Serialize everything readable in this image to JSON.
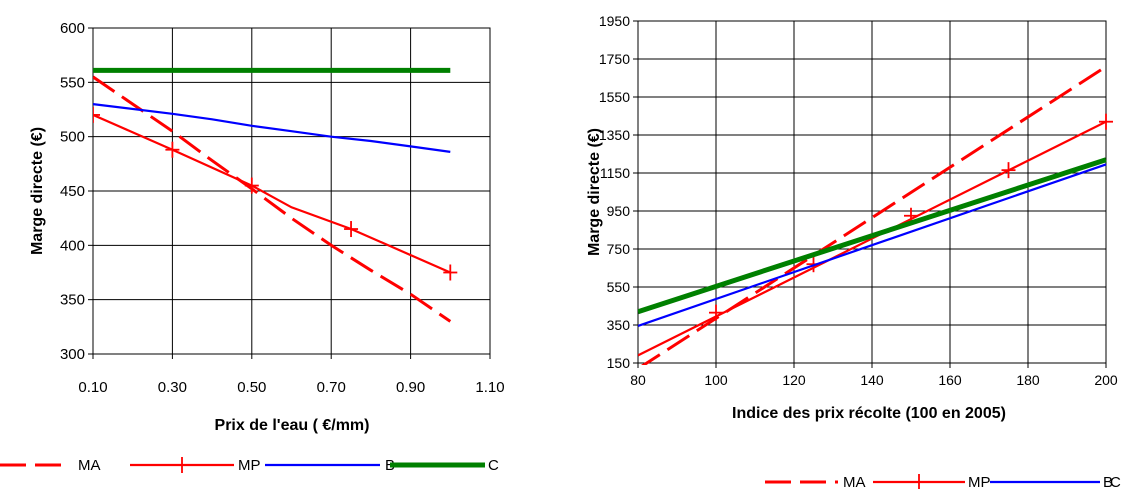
{
  "chart_data": [
    {
      "type": "line",
      "title": "",
      "xlabel": "Prix de l'eau ( €/mm)",
      "ylabel": "Marge directe (€)",
      "xlim": [
        0.1,
        1.1
      ],
      "ylim": [
        300,
        600
      ],
      "xticks": [
        "0.10",
        "0.30",
        "0.50",
        "0.70",
        "0.90",
        "1.10"
      ],
      "yticks": [
        "300",
        "350",
        "400",
        "450",
        "500",
        "550",
        "600"
      ],
      "grid": true,
      "legend_position": "bottom",
      "series": [
        {
          "name": "MA",
          "color": "#ff0000",
          "style": "dashed",
          "points": [
            [
              0.1,
              555
            ],
            [
              0.2,
              530
            ],
            [
              0.3,
              505
            ],
            [
              0.4,
              478
            ],
            [
              0.5,
              452
            ],
            [
              0.6,
              425
            ],
            [
              0.7,
              400
            ],
            [
              0.8,
              377
            ],
            [
              0.9,
              355
            ],
            [
              1.0,
              330
            ]
          ]
        },
        {
          "name": "MP",
          "color": "#ff0000",
          "style": "solid-plus",
          "points": [
            [
              0.1,
              520
            ],
            [
              0.3,
              488
            ],
            [
              0.5,
              455
            ],
            [
              0.6,
              435
            ],
            [
              0.75,
              415
            ],
            [
              1.0,
              375
            ]
          ],
          "markers": [
            [
              0.1,
              520
            ],
            [
              0.3,
              488
            ],
            [
              0.5,
              455
            ],
            [
              0.75,
              415
            ],
            [
              1.0,
              375
            ]
          ]
        },
        {
          "name": "B",
          "color": "#0000ff",
          "style": "solid",
          "points": [
            [
              0.1,
              530
            ],
            [
              0.3,
              521
            ],
            [
              0.4,
              516
            ],
            [
              0.5,
              510
            ],
            [
              0.6,
              505
            ],
            [
              0.7,
              500
            ],
            [
              0.8,
              496
            ],
            [
              0.9,
              491
            ],
            [
              1.0,
              486
            ]
          ]
        },
        {
          "name": "C",
          "color": "#008000",
          "style": "thick",
          "points": [
            [
              0.1,
              561
            ],
            [
              1.0,
              561
            ]
          ]
        }
      ]
    },
    {
      "type": "line",
      "title": "",
      "xlabel": "Indice des prix récolte (100 en 2005)",
      "ylabel": "Marge directe (€)",
      "xlim": [
        80,
        200
      ],
      "ylim": [
        150,
        1950
      ],
      "xticks": [
        "80",
        "100",
        "120",
        "140",
        "160",
        "180",
        "200"
      ],
      "yticks": [
        "150",
        "350",
        "550",
        "750",
        "950",
        "1150",
        "1350",
        "1550",
        "1750",
        "1950"
      ],
      "grid": true,
      "legend_position": "bottom",
      "series": [
        {
          "name": "MA",
          "color": "#ff0000",
          "style": "dashed",
          "points": [
            [
              80,
              120
            ],
            [
              200,
              1710
            ]
          ]
        },
        {
          "name": "MP",
          "color": "#ff0000",
          "style": "solid-plus",
          "points": [
            [
              80,
              190
            ],
            [
              200,
              1420
            ]
          ],
          "markers": [
            [
              100,
              415
            ],
            [
              125,
              670
            ],
            [
              150,
              925
            ],
            [
              175,
              1165
            ],
            [
              200,
              1420
            ]
          ]
        },
        {
          "name": "B",
          "color": "#0000ff",
          "style": "solid",
          "points": [
            [
              80,
              345
            ],
            [
              200,
              1195
            ]
          ]
        },
        {
          "name": "C",
          "color": "#008000",
          "style": "thick",
          "points": [
            [
              80,
              420
            ],
            [
              200,
              1220
            ]
          ]
        }
      ]
    }
  ]
}
